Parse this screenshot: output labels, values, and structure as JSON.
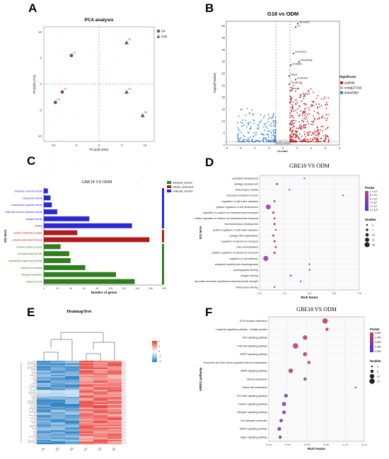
{
  "panel_letters": {
    "a": "A",
    "b": "B",
    "c": "C",
    "d": "D",
    "e": "E",
    "f": "F"
  },
  "chart_data": [
    {
      "id": "A",
      "type": "scatter",
      "title": "PCA analysis",
      "xlabel": "PC1(46.33%)",
      "ylabel": "PC2(28.17%)",
      "xlim": [
        -12,
        12
      ],
      "ylim": [
        -11,
        11
      ],
      "xticks": [
        "-10",
        "-5",
        "0",
        "5",
        "10"
      ],
      "yticks": [
        "10",
        "5",
        "0",
        "-5",
        "-10"
      ],
      "legend": [
        "O4",
        "G18"
      ],
      "colors": {
        "O4": "#8a4a3a",
        "G18": "#3f5f8c"
      },
      "series": [
        {
          "name": "O4",
          "points": [
            {
              "x": -6,
              "y": 5.5,
              "label": "C1"
            },
            {
              "x": -8,
              "y": -1.5,
              "label": "C2"
            },
            {
              "x": -9.5,
              "y": -3.5,
              "label": "C3"
            }
          ]
        },
        {
          "name": "G18",
          "points": [
            {
              "x": 6,
              "y": 8,
              "label": "G1"
            },
            {
              "x": 6,
              "y": -1.5,
              "label": "G2"
            },
            {
              "x": 9.5,
              "y": -6,
              "label": "G3"
            }
          ]
        }
      ]
    },
    {
      "id": "B",
      "type": "scatter",
      "title": "G18 vs ODM",
      "xlabel": "log2FC",
      "ylabel": "-log10(Pvalue)",
      "xlim": [
        -8,
        8
      ],
      "ylim": [
        0,
        52
      ],
      "xticks": [
        "-8",
        "-6",
        "-4",
        "-2",
        "0",
        "2",
        "4",
        "6",
        "8"
      ],
      "yticks": [
        "0",
        "5",
        "10",
        "15",
        "20",
        "25",
        "30",
        "35",
        "40",
        "45",
        "50"
      ],
      "legend_title": "Significant",
      "legend": [
        "up(996)",
        "nosig(27142)",
        "down(585)"
      ],
      "colors": {
        "up": "#c81e1e",
        "nosig": "#bdbdbd",
        "down": "#3a7fd0"
      },
      "labeled_genes": [
        {
          "name": "Sercocrl2",
          "x": 2.1,
          "y": 51
        },
        {
          "name": "C3",
          "x": 1.8,
          "y": 49.5
        },
        {
          "name": "Gm47575",
          "x": 1.5,
          "y": 38.5
        },
        {
          "name": "Serpina3g",
          "x": 2.3,
          "y": 35
        },
        {
          "name": "Gm8862",
          "x": 1.1,
          "y": 33.5
        },
        {
          "name": "Map4",
          "x": 0.9,
          "y": 29
        },
        {
          "name": "Gm21897",
          "x": 1.8,
          "y": 27.5
        },
        {
          "name": "Gm46760",
          "x": 0.9,
          "y": 25.5
        },
        {
          "name": "Cxcl7",
          "x": 1.2,
          "y": 23
        },
        {
          "name": "Sleap4",
          "x": 2.5,
          "y": 21
        }
      ]
    },
    {
      "id": "C",
      "type": "bar",
      "title": "GBE18 VS ODM",
      "xlabel": "Number of genes",
      "ylabel": "GO term",
      "xlim": [
        0,
        180
      ],
      "xticks": [
        "0",
        "20",
        "40",
        "60",
        "80",
        "100",
        "120",
        "140",
        "160",
        "180"
      ],
      "legend": [
        "biological_process",
        "cellular_component",
        "molecular_function"
      ],
      "colors": {
        "biological_process": "#2f7d1e",
        "cellular_component": "#b01a1a",
        "molecular_function": "#2a2ad0"
      },
      "categories": [
        "structural molecule activity",
        "transporter activity",
        "transcription regulator activity",
        "molecular function regulator activity",
        "catalytic activity",
        "binding",
        "protein-containing complex",
        "cellular anatomical structure",
        "immune system process",
        "developmental process",
        "multicellular organismal process",
        "response to stimulus",
        "biological regulation",
        "cellular process"
      ],
      "values": [
        6,
        10,
        12,
        20,
        68,
        132,
        50,
        158,
        25,
        38,
        40,
        62,
        108,
        136
      ],
      "groups": [
        "molecular_function",
        "molecular_function",
        "molecular_function",
        "molecular_function",
        "molecular_function",
        "molecular_function",
        "cellular_component",
        "cellular_component",
        "biological_process",
        "biological_process",
        "biological_process",
        "biological_process",
        "biological_process",
        "biological_process"
      ]
    },
    {
      "id": "D",
      "type": "scatter",
      "title": "GBE18 VS ODM",
      "xlabel": "Rich factor",
      "ylabel": "GO term",
      "xlim": [
        0,
        0.8
      ],
      "xticks": [
        "0.0",
        "0.2",
        "0.4",
        "0.6",
        "0.8"
      ],
      "size_legend_title": "Number",
      "size_legend": [
        "2",
        "7",
        "13",
        "21",
        "30"
      ],
      "color_legend_title": "Pvalue",
      "color_legend": [
        "1 × 10⁻",
        "8 × 10⁻",
        "6 × 10⁻",
        "4 × 10⁻",
        "2 × 10⁻",
        "0 × 10⁰"
      ],
      "categories": [
        "osteoblast development",
        "cartilage development",
        "Wnt receptor activity",
        "structural constituent of bone",
        "regulation of cell-matrix adhesion",
        "positive regulation of cell development",
        "regulation of calcium ion transmembrane transport",
        "positive regulation of calcium ion transmembrane transport",
        "biomineral tissue development",
        "positive regulation of cell-matrix adhesion",
        "collagen fibril organization",
        "regulation of calcium ion transport",
        "bone mineralization",
        "positive regulation of calcium ion transport",
        "regulation of cell adhesion",
        "embryonic skeletal joint morphogenesis",
        "hydroxyapatite binding",
        "collagen binding",
        "extracellular matrix structural constituent conferring tensile strength",
        "RNA-protein binding"
      ],
      "rich_factor": [
        0.36,
        0.14,
        0.24,
        0.67,
        0.12,
        0.07,
        0.11,
        0.12,
        0.12,
        0.13,
        0.11,
        0.12,
        0.13,
        0.12,
        0.05,
        0.4,
        0.4,
        0.25,
        0.33,
        0.12
      ],
      "number": [
        2,
        5,
        2,
        2,
        5,
        28,
        6,
        5,
        6,
        4,
        6,
        6,
        5,
        6,
        30,
        2,
        2,
        4,
        2,
        3
      ],
      "pvalue_level": [
        0.8,
        0.2,
        0.7,
        0.9,
        0.7,
        0.6,
        0.7,
        0.7,
        0.7,
        0.7,
        0.7,
        0.7,
        0.7,
        0.7,
        0.6,
        0.3,
        0.3,
        0.6,
        0.7,
        0.7
      ]
    },
    {
      "id": "E",
      "type": "heatmap",
      "title": "HeatmapTree",
      "columns": [
        "O1",
        "O2",
        "O3",
        "G1",
        "G2",
        "G3"
      ],
      "color_scale": [
        "2",
        "1",
        "0",
        "-1",
        "-2"
      ],
      "colors": {
        "high": "#e8362f",
        "mid": "#ffffff",
        "low": "#2a80c4"
      }
    },
    {
      "id": "F",
      "type": "scatter",
      "title": "GBE18 VS ODM",
      "xlabel": "Rich Factor",
      "ylabel": "KEGG pathway",
      "xlim": [
        0.02,
        0.12
      ],
      "xticks": [
        "0.02",
        "0.04",
        "0.06",
        "0.08",
        "0.10",
        "0.12"
      ],
      "size_legend_title": "Number",
      "size_legend": [
        "1",
        "6",
        "12",
        "17"
      ],
      "color_legend_title": "Pvalue",
      "color_legend": [
        "0.800",
        "0.750",
        "0.500",
        "0.250",
        "0.000"
      ],
      "categories": [
        "ECM-receptor interaction",
        "Longevity regulating pathway - multiple species",
        "Wnt signaling pathway",
        "PI3K-Akt signaling pathway",
        "AMPK signaling pathway",
        "Endocrine and other factor-regulated calcium reabsorption",
        "cAMP signaling pathway",
        "Mineral absorption",
        "Vitamin B6 metabolism",
        "TGF-beta signaling pathway",
        "Calcium signaling pathway",
        "Estrogen signaling pathway",
        "Cell adhesion molecules",
        "MAPK signaling pathway",
        "Hippo signaling pathway"
      ],
      "rich_factor": [
        0.079,
        0.081,
        0.058,
        0.048,
        0.058,
        0.062,
        0.043,
        0.058,
        0.111,
        0.038,
        0.036,
        0.036,
        0.033,
        0.031,
        0.032
      ],
      "number": [
        17,
        6,
        12,
        17,
        10,
        6,
        12,
        6,
        1,
        8,
        10,
        8,
        7,
        8,
        6
      ],
      "pvalue_level": [
        0.85,
        0.85,
        0.8,
        0.8,
        0.8,
        0.8,
        0.75,
        0.7,
        0.3,
        0.4,
        0.45,
        0.4,
        0.4,
        0.4,
        0.4
      ]
    }
  ]
}
